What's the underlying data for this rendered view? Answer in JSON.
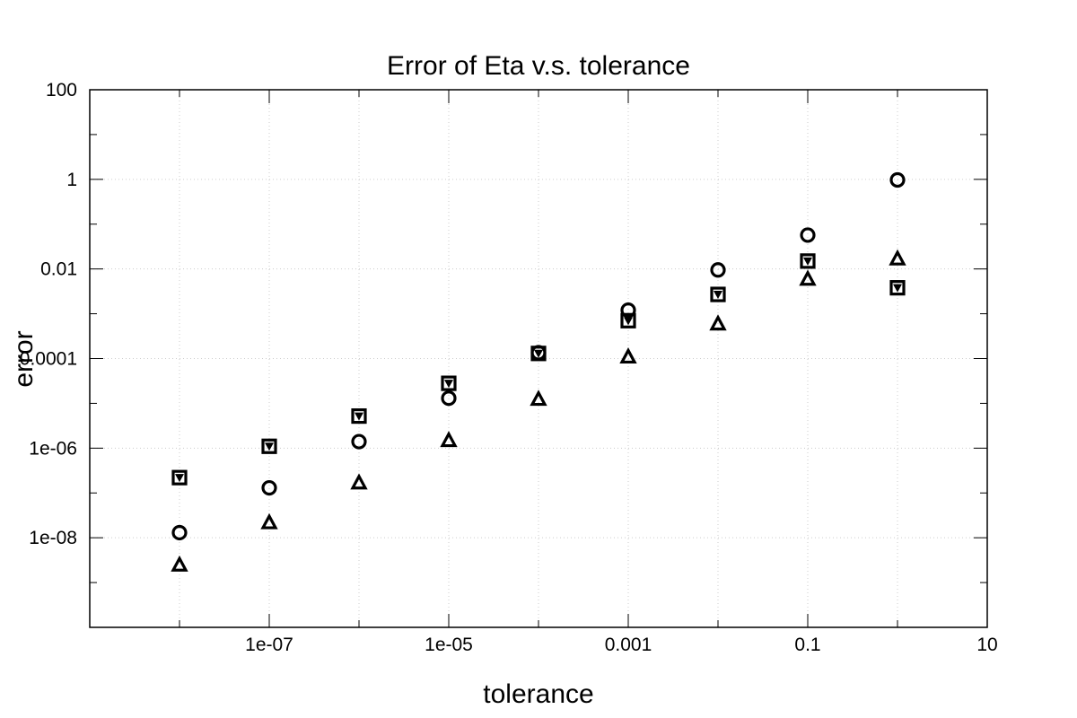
{
  "chart_data": {
    "type": "scatter",
    "title": "Error of Eta v.s. tolerance",
    "xlabel": "tolerance",
    "ylabel": "error",
    "x_scale": "log",
    "y_scale": "log",
    "xlim": [
      1e-09,
      10
    ],
    "ylim": [
      1e-10,
      100
    ],
    "grid": true,
    "x_ticks": [
      {
        "value": 1e-07,
        "label": "1e-07"
      },
      {
        "value": 1e-05,
        "label": "1e-05"
      },
      {
        "value": 0.001,
        "label": "0.001"
      },
      {
        "value": 0.1,
        "label": "0.1"
      },
      {
        "value": 10,
        "label": "10"
      }
    ],
    "y_ticks": [
      {
        "value": 1e-08,
        "label": "1e-08"
      },
      {
        "value": 1e-06,
        "label": "1e-06"
      },
      {
        "value": 0.0001,
        "label": "0.0001"
      },
      {
        "value": 0.01,
        "label": "0.01"
      },
      {
        "value": 1,
        "label": "1"
      },
      {
        "value": 100,
        "label": "100"
      }
    ],
    "x": [
      1e-08,
      1e-07,
      1e-06,
      1e-05,
      0.0001,
      0.001,
      0.01,
      0.1,
      1
    ],
    "series": [
      {
        "marker": "circle",
        "values": [
          1.3e-08,
          1.3e-07,
          1.4e-06,
          1.3e-05,
          0.000135,
          0.0012,
          0.0095,
          0.057,
          0.97
        ]
      },
      {
        "marker": "square",
        "values": [
          2.2e-07,
          1.1e-06,
          5.2e-06,
          2.8e-05,
          0.00013,
          0.0007,
          0.0027,
          0.015,
          0.0038
        ]
      },
      {
        "marker": "triangle-down",
        "values": [
          2.2e-07,
          1.1e-06,
          5.2e-06,
          2.8e-05,
          0.00013,
          0.0007,
          0.0027,
          0.015,
          0.0038
        ]
      },
      {
        "marker": "triangle-up",
        "values": [
          2.5e-09,
          2.2e-08,
          1.7e-07,
          1.5e-06,
          1.25e-05,
          0.00011,
          0.0006,
          0.006,
          0.017
        ]
      }
    ]
  }
}
